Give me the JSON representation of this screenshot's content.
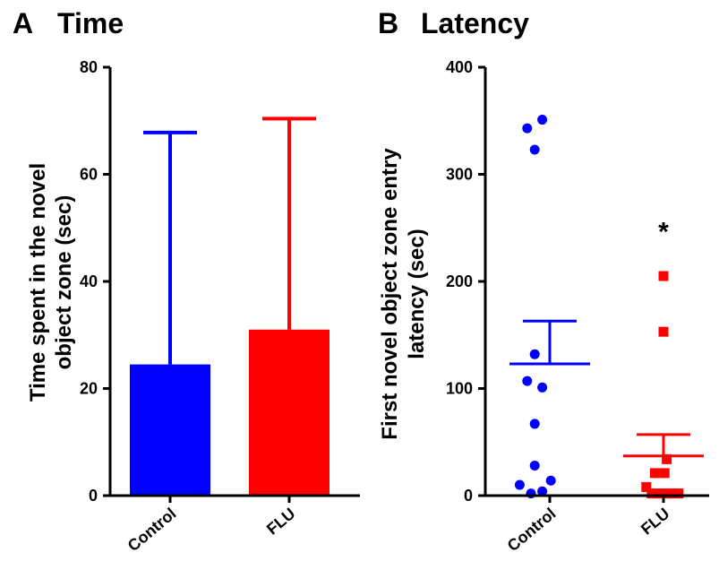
{
  "chart_data": [
    {
      "type": "bar",
      "panel_letter": "A",
      "title": "Time",
      "ylabel": [
        "Time spent in the novel",
        "object zone  (sec)"
      ],
      "categories": [
        "Control",
        "FLU"
      ],
      "values": [
        24.5,
        31.0
      ],
      "error_upper": [
        67.8,
        70.4
      ],
      "colors": [
        "#0000ff",
        "#ff0000"
      ],
      "ylim": [
        0,
        80
      ],
      "yticks": [
        0,
        20,
        40,
        60,
        80
      ],
      "grid": false
    },
    {
      "type": "scatter",
      "panel_letter": "B",
      "title": "Latency",
      "ylabel": [
        "First  novel object zone entry",
        "latency (sec)"
      ],
      "categories": [
        "Control",
        "FLU"
      ],
      "ylim": [
        0,
        400
      ],
      "yticks": [
        0,
        100,
        200,
        300,
        400
      ],
      "grid": false,
      "series": [
        {
          "category": "Control",
          "marker": "circle",
          "color": "#0000ff",
          "points": [
            [
              -0.42,
              343
            ],
            [
              -0.14,
              351
            ],
            [
              -0.28,
              323
            ],
            [
              -0.28,
              132
            ],
            [
              -0.42,
              107
            ],
            [
              -0.14,
              101
            ],
            [
              -0.28,
              67
            ],
            [
              -0.28,
              28
            ],
            [
              -0.56,
              10
            ],
            [
              0.02,
              14
            ],
            [
              -0.35,
              2
            ],
            [
              -0.14,
              4
            ]
          ],
          "mean": 123,
          "sem_upper": 163
        },
        {
          "category": "FLU",
          "marker": "square",
          "color": "#ff0000",
          "points": [
            [
              0.0,
              205
            ],
            [
              0.0,
              153
            ],
            [
              0.06,
              34
            ],
            [
              -0.16,
              21
            ],
            [
              0.02,
              21
            ],
            [
              -0.32,
              8
            ],
            [
              -0.22,
              2
            ],
            [
              -0.12,
              2
            ],
            [
              -0.02,
              2
            ],
            [
              0.08,
              2
            ],
            [
              0.18,
              2
            ],
            [
              0.28,
              2
            ]
          ],
          "mean": 37,
          "sem_upper": 57
        }
      ],
      "annotation": {
        "text": "*",
        "category": "FLU",
        "y": 250
      }
    }
  ]
}
